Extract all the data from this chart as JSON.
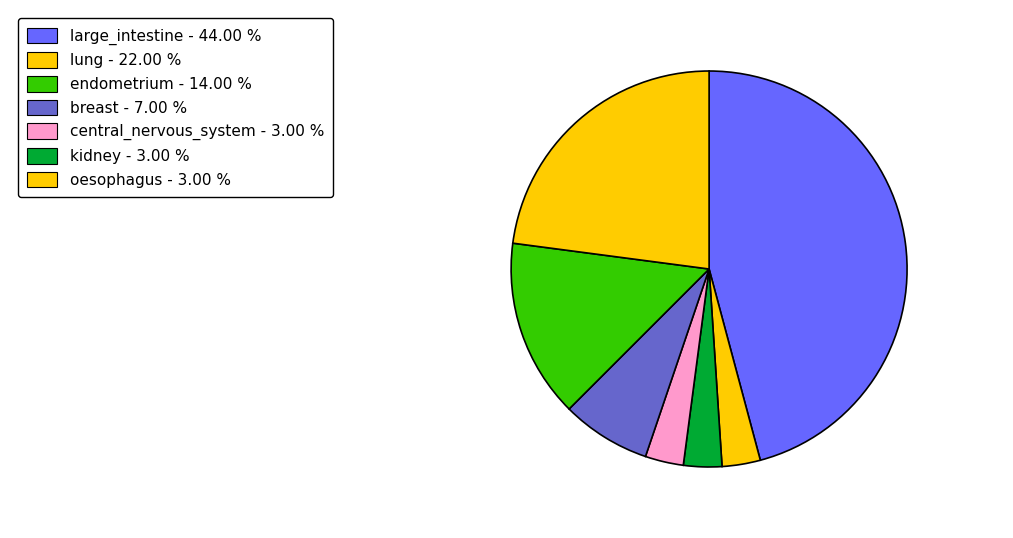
{
  "labels": [
    "large_intestine",
    "oesophagus",
    "kidney",
    "central_nervous_system",
    "breast",
    "endometrium",
    "lung"
  ],
  "values": [
    44.0,
    3.0,
    3.0,
    3.0,
    7.0,
    14.0,
    22.0
  ],
  "slice_colors": [
    "#6666ff",
    "#ffcc00",
    "#00aa33",
    "#ff99cc",
    "#6666cc",
    "#33cc00",
    "#ffcc00"
  ],
  "legend_labels": [
    "large_intestine - 44.00 %",
    "lung - 22.00 %",
    "endometrium - 14.00 %",
    "breast - 7.00 %",
    "central_nervous_system - 3.00 %",
    "kidney - 3.00 %",
    "oesophagus - 3.00 %"
  ],
  "legend_colors": [
    "#6666ff",
    "#ffcc00",
    "#33cc00",
    "#6666cc",
    "#ff99cc",
    "#00aa33",
    "#ffcc00"
  ],
  "startangle": 90,
  "figsize": [
    10.13,
    5.38
  ],
  "dpi": 100
}
